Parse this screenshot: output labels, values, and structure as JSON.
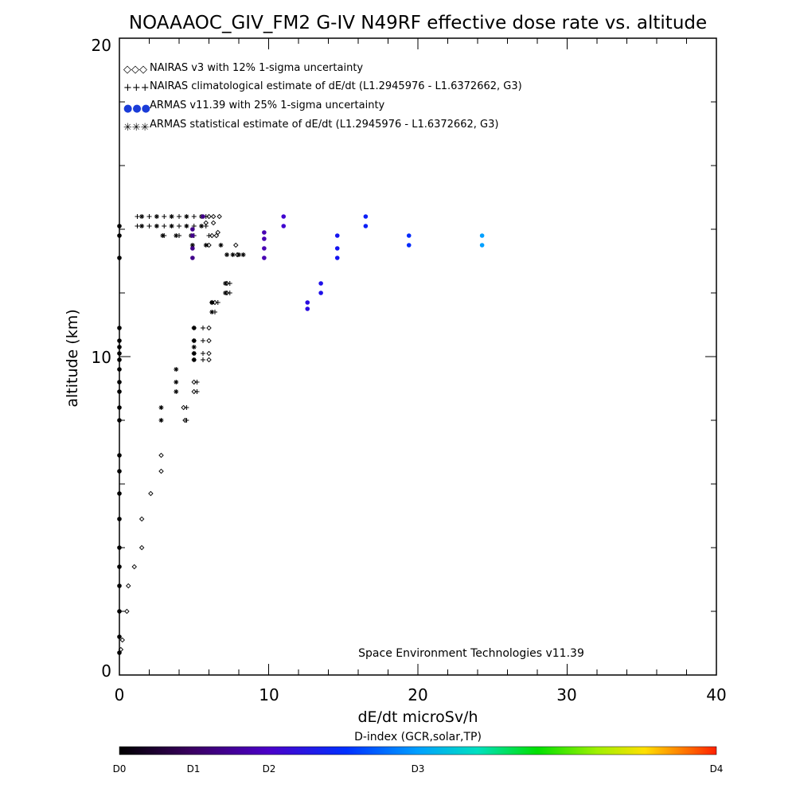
{
  "chart_data": {
    "type": "scatter",
    "title": "NOAAAOC_GIV_FM2 G-IV   N49RF  effective dose rate vs. altitude",
    "xlabel": "dE/dt microSv/h",
    "ylabel": "altitude (km)",
    "xlim": [
      0,
      40
    ],
    "ylim": [
      0,
      20
    ],
    "x_ticks": [
      "0",
      "10",
      "20",
      "30",
      "40"
    ],
    "y_ticks": [
      "0",
      "10",
      "20"
    ],
    "legend": [
      {
        "symbol": "◇◇◇",
        "label": "NAIRAS v3 with 12% 1-sigma uncertainty",
        "color": "#000000"
      },
      {
        "symbol": "+++",
        "label": "NAIRAS climatological estimate of dE/dt (L1.2945976 - L1.6372662, G3)",
        "color": "#000000"
      },
      {
        "symbol": "●●●",
        "label": "ARMAS v11.39 with 25% 1-sigma uncertainty",
        "color": "#1a3cd8"
      },
      {
        "symbol": "✳✳✳",
        "label": "ARMAS statistical estimate of dE/dt (L1.2945976 - L1.6372662, G3)",
        "color": "#000000"
      }
    ],
    "annotation": "Space Environment Technologies v11.39",
    "colorbar": {
      "title": "D-index (GCR,solar,TP)",
      "labels": [
        {
          "text": "D0",
          "value": 0
        },
        {
          "text": "D1",
          "value": 1
        },
        {
          "text": "D2",
          "value": 2
        },
        {
          "text": "D3",
          "value": 3
        },
        {
          "text": "D4",
          "value": 4
        }
      ]
    },
    "series": [
      {
        "name": "NAIRAS v3",
        "marker": "diamond",
        "color": "#000000",
        "points": [
          [
            0.1,
            0.8
          ],
          [
            0.2,
            1.1
          ],
          [
            0.5,
            2.0
          ],
          [
            0.6,
            2.8
          ],
          [
            1.0,
            3.4
          ],
          [
            1.5,
            4.0
          ],
          [
            1.5,
            4.9
          ],
          [
            2.1,
            5.7
          ],
          [
            2.8,
            6.4
          ],
          [
            2.8,
            6.9
          ],
          [
            4.4,
            8.0
          ],
          [
            4.3,
            8.4
          ],
          [
            5.0,
            8.9
          ],
          [
            5.0,
            9.2
          ],
          [
            5.0,
            9.9
          ],
          [
            5.0,
            10.1
          ],
          [
            5.0,
            10.5
          ],
          [
            5.0,
            10.9
          ],
          [
            6.0,
            9.9
          ],
          [
            6.0,
            10.1
          ],
          [
            6.0,
            10.5
          ],
          [
            6.0,
            10.9
          ],
          [
            6.2,
            11.7
          ],
          [
            6.4,
            11.7
          ],
          [
            7.2,
            12.0
          ],
          [
            7.2,
            12.3
          ],
          [
            7.9,
            13.2
          ],
          [
            7.8,
            13.5
          ],
          [
            6.0,
            13.5
          ],
          [
            6.2,
            13.8
          ],
          [
            6.5,
            13.8
          ],
          [
            6.3,
            14.2
          ],
          [
            5.8,
            14.2
          ],
          [
            6.6,
            13.9
          ],
          [
            6.0,
            14.4
          ],
          [
            6.3,
            14.4
          ],
          [
            6.7,
            14.4
          ]
        ]
      },
      {
        "name": "NAIRAS climatological estimate",
        "marker": "plus",
        "color": "#000000",
        "points": [
          [
            4.5,
            8.0
          ],
          [
            4.5,
            8.4
          ],
          [
            5.2,
            8.9
          ],
          [
            5.2,
            9.2
          ],
          [
            5.6,
            9.9
          ],
          [
            5.6,
            10.1
          ],
          [
            5.6,
            10.5
          ],
          [
            5.6,
            10.9
          ],
          [
            6.4,
            11.4
          ],
          [
            6.6,
            11.7
          ],
          [
            7.4,
            12.0
          ],
          [
            7.4,
            12.3
          ],
          [
            1.2,
            14.1
          ],
          [
            2.0,
            14.1
          ],
          [
            3.0,
            14.1
          ],
          [
            4.0,
            14.1
          ],
          [
            5.0,
            14.1
          ],
          [
            5.8,
            14.1
          ],
          [
            1.2,
            14.4
          ],
          [
            2.0,
            14.4
          ],
          [
            3.0,
            14.4
          ],
          [
            4.0,
            14.4
          ],
          [
            5.0,
            14.4
          ],
          [
            5.8,
            14.4
          ],
          [
            3.0,
            13.8
          ],
          [
            4.0,
            13.8
          ],
          [
            5.0,
            13.8
          ],
          [
            6.0,
            13.8
          ]
        ]
      },
      {
        "name": "ARMAS statistical estimate",
        "marker": "asterisk",
        "color": "#000000",
        "points": [
          [
            2.8,
            8.0
          ],
          [
            2.8,
            8.4
          ],
          [
            3.8,
            8.9
          ],
          [
            3.8,
            9.2
          ],
          [
            3.8,
            9.6
          ],
          [
            5.0,
            9.9
          ],
          [
            5.0,
            10.1
          ],
          [
            5.0,
            10.3
          ],
          [
            5.0,
            10.5
          ],
          [
            5.0,
            10.9
          ],
          [
            6.2,
            11.4
          ],
          [
            6.2,
            11.7
          ],
          [
            7.1,
            12.0
          ],
          [
            7.1,
            12.3
          ],
          [
            1.5,
            14.1
          ],
          [
            2.5,
            14.1
          ],
          [
            3.5,
            14.1
          ],
          [
            4.5,
            14.1
          ],
          [
            5.5,
            14.1
          ],
          [
            1.5,
            14.4
          ],
          [
            2.5,
            14.4
          ],
          [
            3.5,
            14.4
          ],
          [
            4.5,
            14.4
          ],
          [
            5.5,
            14.4
          ],
          [
            2.9,
            13.8
          ],
          [
            3.8,
            13.8
          ],
          [
            4.8,
            13.8
          ],
          [
            4.9,
            13.5
          ],
          [
            5.8,
            13.5
          ],
          [
            6.8,
            13.5
          ],
          [
            7.2,
            13.2
          ],
          [
            7.6,
            13.2
          ],
          [
            8.0,
            13.2
          ],
          [
            8.3,
            13.2
          ]
        ]
      },
      {
        "name": "ARMAS v11.39",
        "marker": "dot",
        "points": [
          {
            "x": 0.0,
            "y": 0.7,
            "d": 0.0
          },
          {
            "x": 0.0,
            "y": 1.2,
            "d": 0.0
          },
          {
            "x": 0.0,
            "y": 2.0,
            "d": 0.0
          },
          {
            "x": 0.0,
            "y": 2.8,
            "d": 0.0
          },
          {
            "x": 0.0,
            "y": 3.4,
            "d": 0.0
          },
          {
            "x": 0.0,
            "y": 4.0,
            "d": 0.0
          },
          {
            "x": 0.0,
            "y": 4.9,
            "d": 0.0
          },
          {
            "x": 0.0,
            "y": 5.7,
            "d": 0.0
          },
          {
            "x": 0.0,
            "y": 6.4,
            "d": 0.0
          },
          {
            "x": 0.0,
            "y": 6.9,
            "d": 0.0
          },
          {
            "x": 0.0,
            "y": 8.0,
            "d": 0.0
          },
          {
            "x": 0.0,
            "y": 8.4,
            "d": 0.0
          },
          {
            "x": 0.0,
            "y": 8.9,
            "d": 0.0
          },
          {
            "x": 0.0,
            "y": 9.2,
            "d": 0.0
          },
          {
            "x": 0.0,
            "y": 9.6,
            "d": 0.0
          },
          {
            "x": 0.0,
            "y": 9.9,
            "d": 0.0
          },
          {
            "x": 0.0,
            "y": 10.1,
            "d": 0.0
          },
          {
            "x": 0.0,
            "y": 10.3,
            "d": 0.0
          },
          {
            "x": 0.0,
            "y": 10.5,
            "d": 0.0
          },
          {
            "x": 0.0,
            "y": 10.9,
            "d": 0.0
          },
          {
            "x": 0.0,
            "y": 13.1,
            "d": 0.0
          },
          {
            "x": 0.0,
            "y": 13.8,
            "d": 0.0
          },
          {
            "x": 0.0,
            "y": 14.1,
            "d": 0.0
          },
          {
            "x": 4.9,
            "y": 13.1,
            "d": 0.7
          },
          {
            "x": 4.9,
            "y": 13.4,
            "d": 0.7
          },
          {
            "x": 4.9,
            "y": 13.8,
            "d": 0.7
          },
          {
            "x": 4.9,
            "y": 14.0,
            "d": 0.7
          },
          {
            "x": 5.6,
            "y": 14.4,
            "d": 0.7
          },
          {
            "x": 9.7,
            "y": 13.1,
            "d": 0.9
          },
          {
            "x": 9.7,
            "y": 13.4,
            "d": 0.9
          },
          {
            "x": 9.7,
            "y": 13.7,
            "d": 0.9
          },
          {
            "x": 9.7,
            "y": 13.9,
            "d": 0.9
          },
          {
            "x": 11.0,
            "y": 14.1,
            "d": 1.1
          },
          {
            "x": 11.0,
            "y": 14.4,
            "d": 1.1
          },
          {
            "x": 12.6,
            "y": 11.5,
            "d": 1.3
          },
          {
            "x": 12.6,
            "y": 11.7,
            "d": 1.3
          },
          {
            "x": 13.5,
            "y": 12.0,
            "d": 1.4
          },
          {
            "x": 13.5,
            "y": 12.3,
            "d": 1.4
          },
          {
            "x": 14.6,
            "y": 13.1,
            "d": 1.5
          },
          {
            "x": 14.6,
            "y": 13.4,
            "d": 1.5
          },
          {
            "x": 14.6,
            "y": 13.8,
            "d": 1.5
          },
          {
            "x": 16.5,
            "y": 14.1,
            "d": 1.7
          },
          {
            "x": 16.5,
            "y": 14.4,
            "d": 1.7
          },
          {
            "x": 19.4,
            "y": 13.5,
            "d": 1.9
          },
          {
            "x": 19.4,
            "y": 13.8,
            "d": 1.9
          },
          {
            "x": 24.3,
            "y": 13.5,
            "d": 2.5
          },
          {
            "x": 24.3,
            "y": 13.8,
            "d": 2.5
          }
        ]
      }
    ],
    "grid": false
  }
}
